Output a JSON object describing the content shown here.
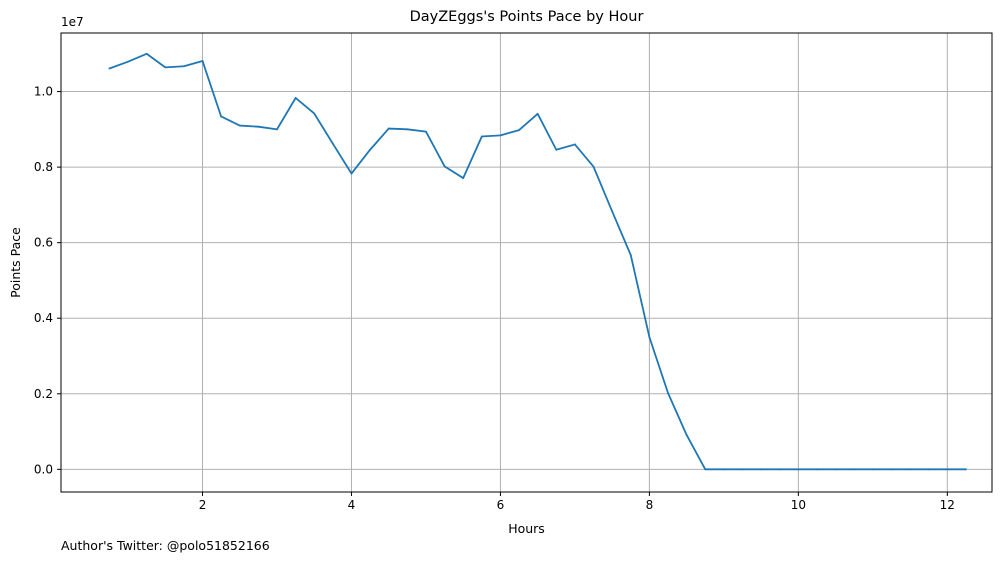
{
  "chart_data": {
    "type": "line",
    "title": "DayZEggs's Points Pace by Hour",
    "xlabel": "Hours",
    "ylabel": "Points Pace",
    "y_scale_note": "1e7",
    "xlim": [
      0.1,
      12.6
    ],
    "ylim": [
      -0.06,
      1.155
    ],
    "x_ticks": [
      2,
      4,
      6,
      8,
      10,
      12
    ],
    "x_tick_labels": [
      "2",
      "4",
      "6",
      "8",
      "10",
      "12"
    ],
    "y_ticks": [
      0.0,
      0.2,
      0.4,
      0.6,
      0.8,
      1.0
    ],
    "y_tick_labels": [
      "0.0",
      "0.2",
      "0.4",
      "0.6",
      "0.8",
      "1.0"
    ],
    "grid": true,
    "series": [
      {
        "color": "#1f77b4",
        "x": [
          0.75,
          1.0,
          1.25,
          1.5,
          1.75,
          2.0,
          2.25,
          2.5,
          2.75,
          3.0,
          3.25,
          3.5,
          3.75,
          4.0,
          4.25,
          4.5,
          4.75,
          5.0,
          5.25,
          5.5,
          5.75,
          6.0,
          6.25,
          6.5,
          6.75,
          7.0,
          7.25,
          7.5,
          7.75,
          8.0,
          8.25,
          8.5,
          8.75,
          9.0,
          9.25,
          9.5,
          9.75,
          10.0,
          10.25,
          10.5,
          10.75,
          11.0,
          11.25,
          11.5,
          11.75,
          12.0,
          12.25
        ],
        "y": [
          1.061,
          1.079,
          1.1,
          1.064,
          1.067,
          1.081,
          0.934,
          0.91,
          0.907,
          0.9,
          0.983,
          0.942,
          0.862,
          0.783,
          0.846,
          0.902,
          0.9,
          0.894,
          0.802,
          0.771,
          0.881,
          0.884,
          0.898,
          0.941,
          0.846,
          0.86,
          0.801,
          0.683,
          0.567,
          0.35,
          0.202,
          0.091,
          0.0,
          0.0,
          0.0,
          0.0,
          0.0,
          0.0,
          0.0,
          0.0,
          0.0,
          0.0,
          0.0,
          0.0,
          0.0,
          0.0,
          0.0
        ]
      }
    ]
  },
  "footer": {
    "note": "Author's Twitter: @polo51852166"
  }
}
